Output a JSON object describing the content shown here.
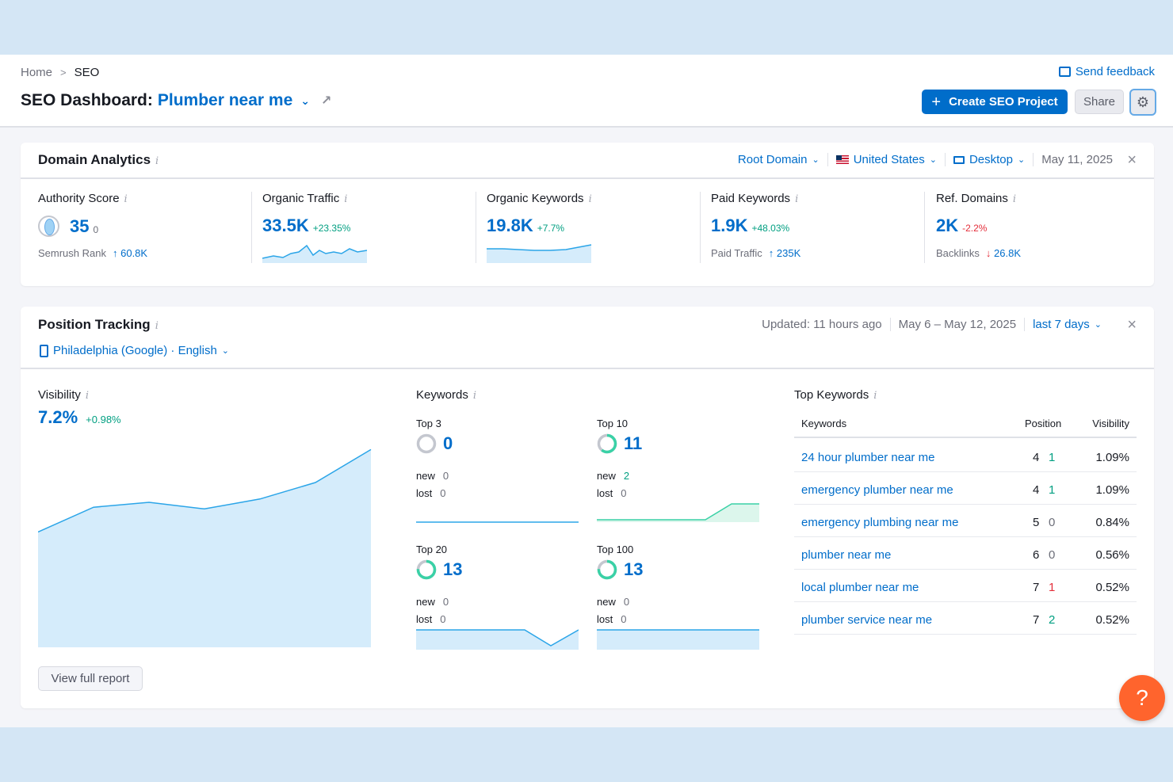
{
  "breadcrumb": {
    "home": "Home",
    "current": "SEO"
  },
  "header": {
    "title_prefix": "SEO Dashboard:",
    "project": "Plumber near me",
    "send_feedback": "Send feedback",
    "create_project": "Create SEO Project",
    "share": "Share"
  },
  "domain_analytics": {
    "title": "Domain Analytics",
    "controls": {
      "scope": "Root Domain",
      "country": "United States",
      "device": "Desktop",
      "date": "May 11, 2025"
    },
    "metrics": [
      {
        "label": "Authority Score",
        "value": "35",
        "delta": "0",
        "sub_label": "Semrush Rank",
        "sub_arrow": "↑",
        "sub_value": "60.8K"
      },
      {
        "label": "Organic Traffic",
        "value": "33.5K",
        "delta": "+23.35%"
      },
      {
        "label": "Organic Keywords",
        "value": "19.8K",
        "delta": "+7.7%"
      },
      {
        "label": "Paid Keywords",
        "value": "1.9K",
        "delta": "+48.03%",
        "sub_label": "Paid Traffic",
        "sub_arrow": "↑",
        "sub_value": "235K"
      },
      {
        "label": "Ref. Domains",
        "value": "2K",
        "delta": "-2.2%",
        "sub_label": "Backlinks",
        "sub_arrow": "↓",
        "sub_value": "26.8K"
      }
    ]
  },
  "position_tracking": {
    "title": "Position Tracking",
    "updated": "Updated: 11 hours ago",
    "range": "May 6 – May 12, 2025",
    "period": "last 7 days",
    "location": "Philadelphia (Google) · English",
    "visibility": {
      "label": "Visibility",
      "value": "7.2%",
      "delta": "+0.98%"
    },
    "keywords": {
      "label": "Keywords",
      "blocks": [
        {
          "label": "Top 3",
          "value": "0",
          "new_label": "new",
          "new": "0",
          "lost_label": "lost",
          "lost": "0",
          "fill": 0
        },
        {
          "label": "Top 10",
          "value": "11",
          "new_label": "new",
          "new": "2",
          "lost_label": "lost",
          "lost": "0",
          "fill": 0.6
        },
        {
          "label": "Top 20",
          "value": "13",
          "new_label": "new",
          "new": "0",
          "lost_label": "lost",
          "lost": "0",
          "fill": 0.75
        },
        {
          "label": "Top 100",
          "value": "13",
          "new_label": "new",
          "new": "0",
          "lost_label": "lost",
          "lost": "0",
          "fill": 0.75
        }
      ]
    },
    "top_keywords": {
      "label": "Top Keywords",
      "headers": {
        "keyword": "Keywords",
        "position": "Position",
        "visibility": "Visibility"
      },
      "rows": [
        {
          "keyword": "24 hour plumber near me",
          "position": "4",
          "change": "1",
          "visibility": "1.09%"
        },
        {
          "keyword": "emergency plumber near me",
          "position": "4",
          "change": "1",
          "visibility": "1.09%"
        },
        {
          "keyword": "emergency plumbing near me",
          "position": "5",
          "change": "0",
          "visibility": "0.84%"
        },
        {
          "keyword": "plumber near me",
          "position": "6",
          "change": "0",
          "visibility": "0.56%"
        },
        {
          "keyword": "local plumber near me",
          "position": "7",
          "change": "1",
          "visibility": "0.52%"
        },
        {
          "keyword": "plumber service near me",
          "position": "7",
          "change": "2",
          "visibility": "0.52%"
        }
      ]
    },
    "view_full_report": "View full report"
  },
  "help": "?",
  "colors": {
    "accent": "#006dca",
    "positive": "#009f81",
    "negative": "#e42e3a",
    "help": "#ff642d"
  },
  "chart_data": {
    "type": "area",
    "x": [
      1,
      2,
      3,
      4,
      5,
      6,
      7
    ],
    "values": [
      6.7,
      6.85,
      6.88,
      6.84,
      6.9,
      7.0,
      7.2
    ],
    "ylim": [
      6.0,
      7.25
    ]
  }
}
